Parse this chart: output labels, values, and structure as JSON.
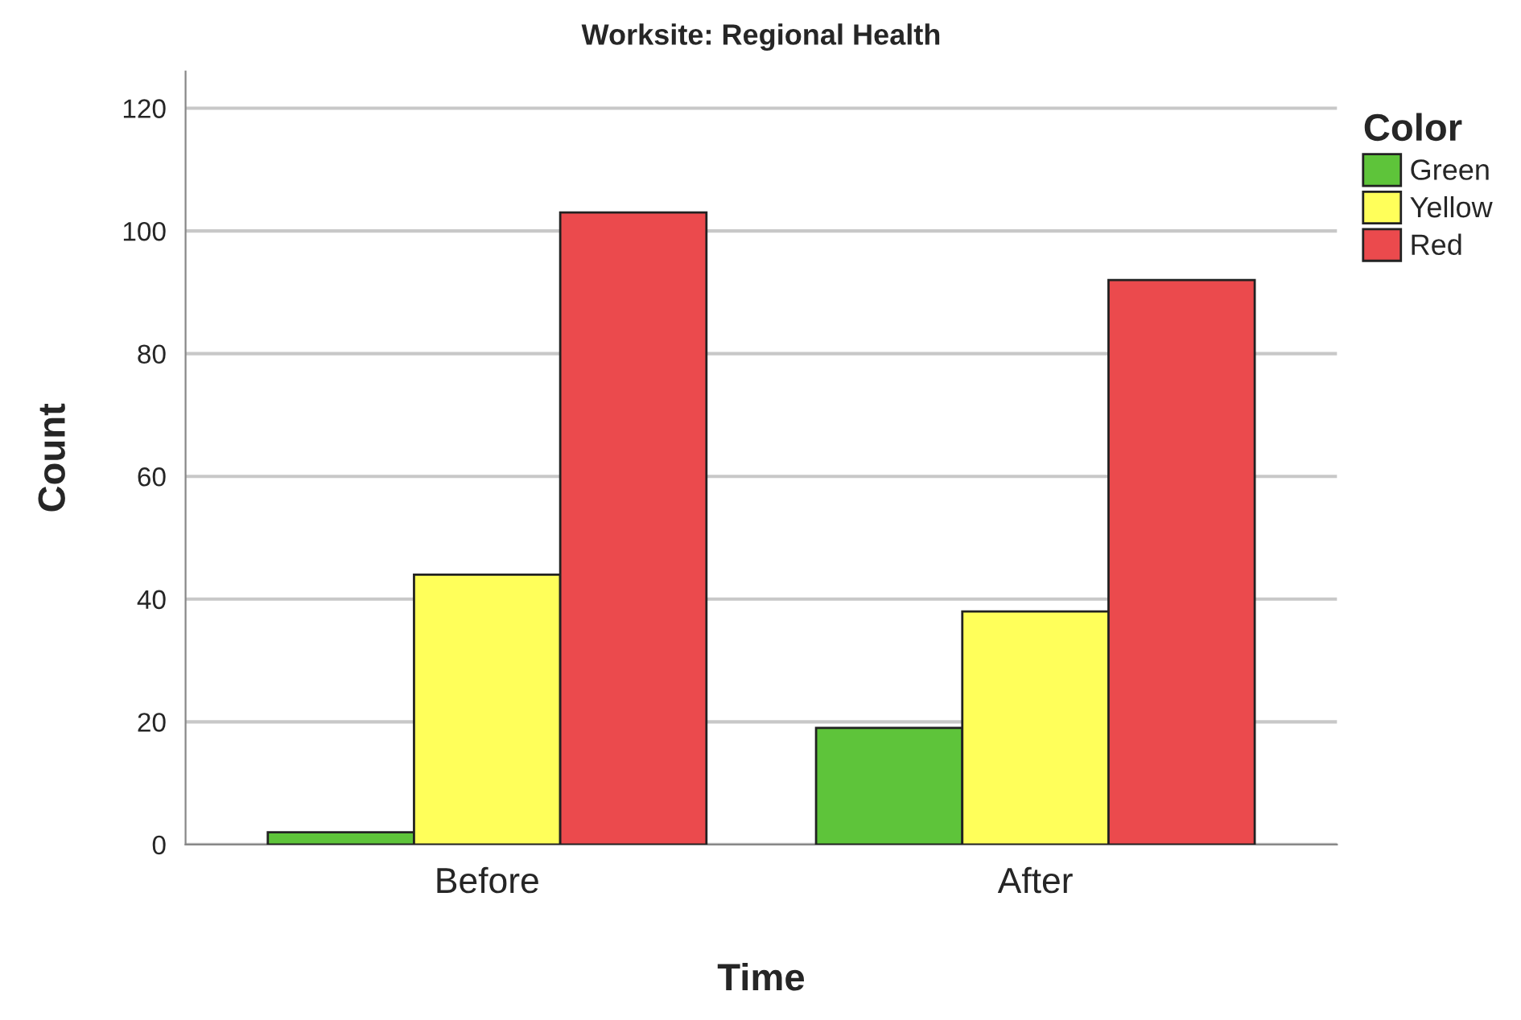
{
  "chart_data": {
    "type": "bar",
    "title": "Worksite: Regional Health",
    "xlabel": "Time",
    "ylabel": "Count",
    "legend_title": "Color",
    "categories": [
      "Before",
      "After"
    ],
    "series": [
      {
        "name": "Green",
        "color": "#5ec43a",
        "values": [
          2,
          19
        ]
      },
      {
        "name": "Yellow",
        "color": "#ffff5a",
        "values": [
          44,
          38
        ]
      },
      {
        "name": "Red",
        "color": "#eb4a4d",
        "values": [
          103,
          92
        ]
      }
    ],
    "ylim": [
      0,
      126
    ],
    "yticks": [
      0,
      20,
      40,
      60,
      80,
      100,
      120
    ],
    "grid": "y",
    "legend": "top right"
  }
}
